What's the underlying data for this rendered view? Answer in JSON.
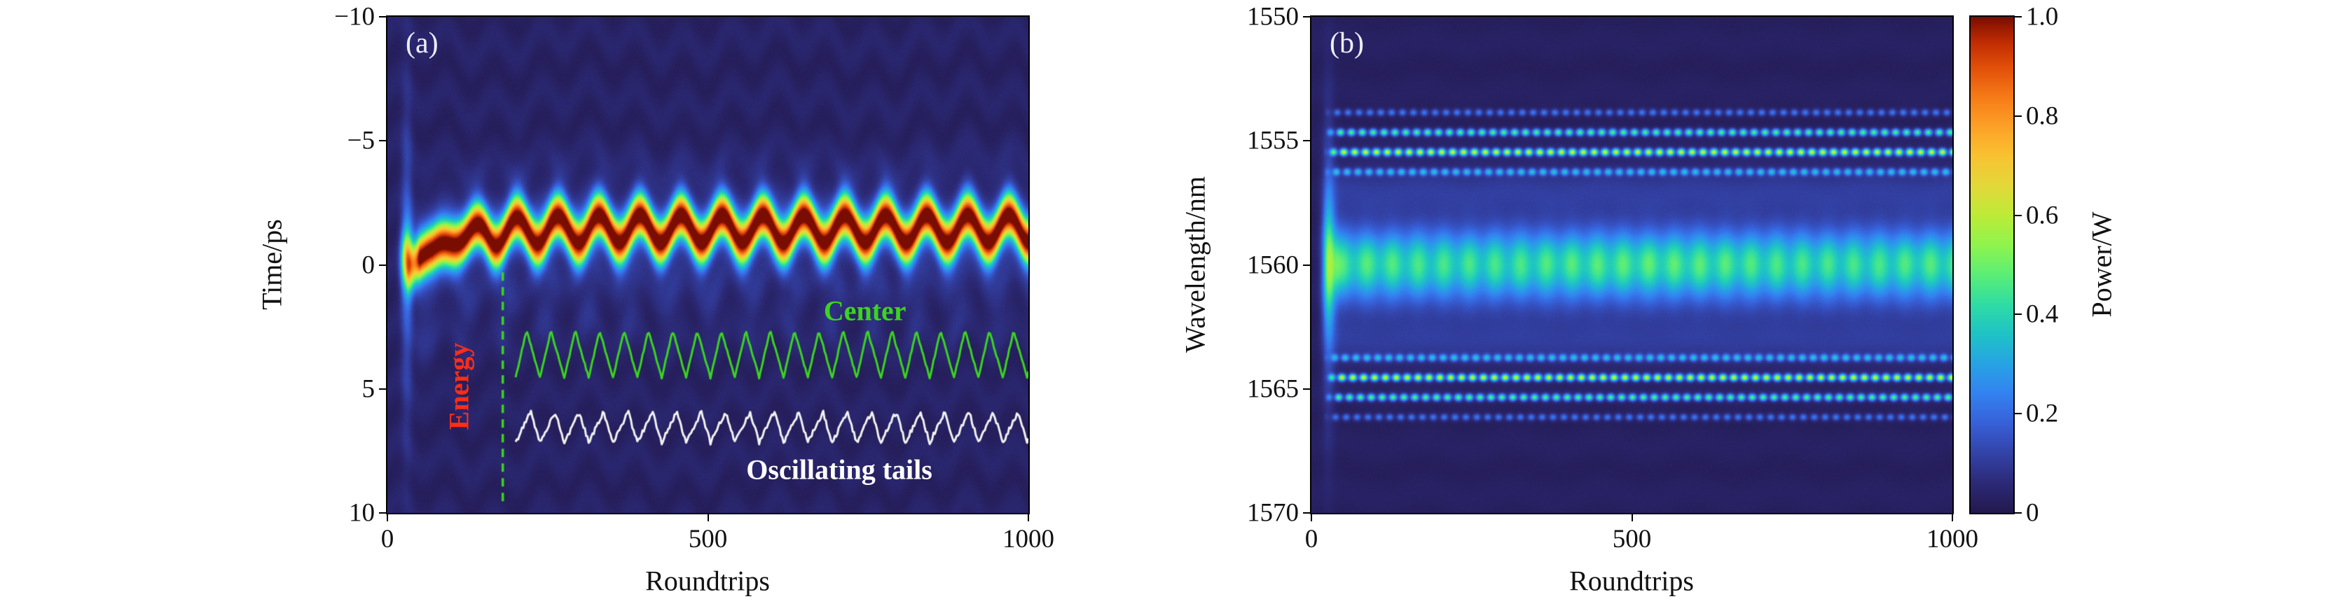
{
  "figure": {
    "background": "#ffffff"
  },
  "colormap": {
    "name": "turbo-like-jet",
    "stops": [
      [
        0.0,
        "#23194e"
      ],
      [
        0.06,
        "#2c2a77"
      ],
      [
        0.12,
        "#3343a8"
      ],
      [
        0.18,
        "#3760d8"
      ],
      [
        0.24,
        "#3382f1"
      ],
      [
        0.3,
        "#27a3e4"
      ],
      [
        0.36,
        "#1ec3c6"
      ],
      [
        0.42,
        "#2fdca4"
      ],
      [
        0.48,
        "#5bee77"
      ],
      [
        0.54,
        "#8ff44d"
      ],
      [
        0.6,
        "#bdeb38"
      ],
      [
        0.66,
        "#e3d839"
      ],
      [
        0.72,
        "#f9c232"
      ],
      [
        0.78,
        "#fda127"
      ],
      [
        0.84,
        "#f67a17"
      ],
      [
        0.9,
        "#e14f09"
      ],
      [
        0.95,
        "#c02c02"
      ],
      [
        1.0,
        "#7a0d01"
      ]
    ]
  },
  "colorbar": {
    "label": "Power/W",
    "tick_labels_bottom_to_top": [
      "0",
      "0.2",
      "0.4",
      "0.6",
      "0.8",
      "1.0"
    ],
    "min": 0,
    "max": 1
  },
  "chart_data": [
    {
      "type": "heatmap",
      "panel_tag": "(a)",
      "xlabel": "Roundtrips",
      "ylabel": "Time/ps",
      "x_range": [
        0,
        1000
      ],
      "y_range_top_to_bottom": [
        -10,
        10
      ],
      "x_ticks": [
        "0",
        "500",
        "1000"
      ],
      "y_ticks": [
        "−10",
        "−5",
        "0",
        "5",
        "10"
      ],
      "value_unit": "W",
      "pulse": {
        "mean_center_ps": -1.45,
        "initial_center_ps": 0.3,
        "settle_roundtrips": 55,
        "oscillation_amplitude_ps": 0.55,
        "oscillation_period_roundtrips": 64,
        "gaussian_width_ps": 0.85,
        "peak_power_w": 0.98,
        "start_roundtrip": 28
      },
      "guide_line": {
        "x": 180,
        "y_from": 0.3,
        "y_to": 9.75,
        "color": "#3bd41e",
        "dash": [
          12,
          9
        ],
        "linewidth": 3.5
      },
      "traces": [
        {
          "name": "center-trace",
          "label": "Center",
          "color": "#3bd41e",
          "baseline_ps": 3.6,
          "amplitude_ps": 0.95,
          "period_roundtrips": 38,
          "x_start": 200,
          "x_end": 1000,
          "rise_fraction": 0.45,
          "jitter": 0.08,
          "linewidth": 3
        },
        {
          "name": "tails-trace",
          "label": "Oscillating tails",
          "color": "#f2f2f2",
          "baseline_ps": 6.55,
          "amplitude_ps": 0.62,
          "period_roundtrips": 38,
          "x_start": 200,
          "x_end": 1000,
          "rise_fraction": 0.62,
          "jitter": 0.18,
          "linewidth": 3
        }
      ],
      "annotations": [
        {
          "name": "energy-label",
          "text": "Energy",
          "color": "#ff2d16",
          "x": 112,
          "y": 4.9,
          "rotation": -90
        },
        {
          "name": "center-label",
          "text": "Center",
          "color": "#3bd41e",
          "x": 745,
          "y": 1.85,
          "rotation": 0
        },
        {
          "name": "tails-label",
          "text": "Oscillating tails",
          "color": "#ffffff",
          "x": 705,
          "y": 8.25,
          "rotation": 0
        }
      ]
    },
    {
      "type": "heatmap",
      "panel_tag": "(b)",
      "xlabel": "Roundtrips",
      "ylabel": "Wavelength/nm",
      "x_range": [
        0,
        1000
      ],
      "y_range_top_to_bottom": [
        1550,
        1570
      ],
      "x_ticks": [
        "0",
        "500",
        "1000"
      ],
      "y_ticks": [
        "1550",
        "1555",
        "1560",
        "1565",
        "1570"
      ],
      "value_unit": "W",
      "spectrum": {
        "center_nm": 1560,
        "band_width_nm": 1.25,
        "band_peak_w": 0.3,
        "pedestal_width_nm": 2.6,
        "pedestal_peak_w": 0.1,
        "breathing_period_roundtrips": 40,
        "breathing_amplitude_w": 0.05,
        "start_roundtrip": 18,
        "sidebands": [
          {
            "offset_nm": 3.75,
            "peak_w": 0.3
          },
          {
            "offset_nm": 4.55,
            "peak_w": 0.6
          },
          {
            "offset_nm": 5.35,
            "peak_w": 0.45
          },
          {
            "offset_nm": 6.15,
            "peak_w": 0.2
          }
        ]
      }
    }
  ]
}
